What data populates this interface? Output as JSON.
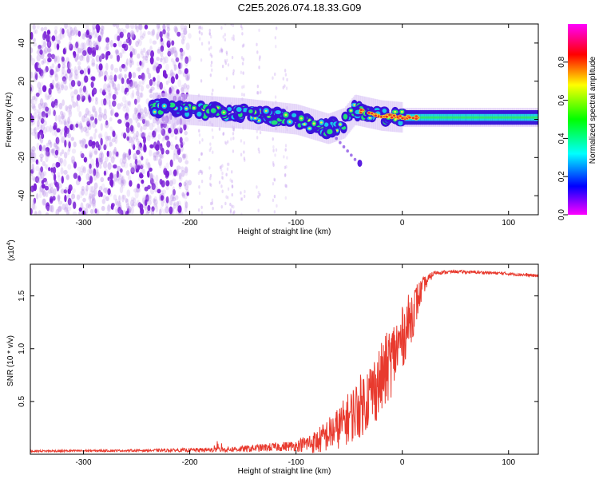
{
  "title": "C2E5.2026.074.18.33.G09",
  "colors": {
    "snr_line": "#e83a2e",
    "spectro_cloud": "#8a2be2",
    "axis": "#000000"
  },
  "chart_data": [
    {
      "type": "heatmap",
      "name": "spectrogram",
      "xlabel": "Height of straight line (km)",
      "ylabel": "Frequency (Hz)",
      "xlim": [
        -350,
        128
      ],
      "ylim": [
        -50,
        50
      ],
      "x_ticks": [
        -300,
        -200,
        -100,
        0,
        100
      ],
      "y_ticks": [
        40,
        20,
        0,
        -20,
        -40
      ],
      "colorbar": {
        "label": "Normalized spectral amplitude",
        "ticks": [
          0.0,
          0.2,
          0.4,
          0.6,
          0.8
        ],
        "range": [
          0,
          1
        ],
        "colormap": [
          "#ff00ff",
          "#0000ff",
          "#00ffff",
          "#00ff00",
          "#ffff00",
          "#ff0000",
          "#ff00ff"
        ]
      },
      "features": {
        "noise_region_x": [
          -350,
          -200
        ],
        "signal_start_x": -235,
        "signal_trace_hz": [
          [
            -235,
            6
          ],
          [
            -200,
            5
          ],
          [
            -150,
            3
          ],
          [
            -100,
            0
          ],
          [
            -70,
            -5
          ],
          [
            -55,
            -2
          ],
          [
            -45,
            5
          ],
          [
            -20,
            2
          ],
          [
            0,
            1
          ],
          [
            128,
            1
          ]
        ],
        "stray_blob": [
          -40,
          -23
        ]
      }
    },
    {
      "type": "line",
      "name": "snr",
      "xlabel": "Height of straight line (km)",
      "ylabel": "SNR (10 * v/v)",
      "y_multiplier_label": "(x10",
      "y_multiplier_exp": "4",
      "xlim": [
        -350,
        128
      ],
      "ylim": [
        0,
        1.8
      ],
      "x_ticks": [
        -300,
        -200,
        -100,
        0,
        100
      ],
      "y_ticks": [
        0.5,
        1.0,
        1.5
      ],
      "y_tick_labels": [
        "0.5",
        "1.0",
        "1.5"
      ],
      "envelope": {
        "x": [
          -350,
          -250,
          -190,
          -150,
          -100,
          -80,
          -60,
          -40,
          -20,
          -10,
          0,
          10,
          20,
          30,
          50,
          80,
          100,
          128
        ],
        "mean": [
          0.03,
          0.035,
          0.04,
          0.05,
          0.08,
          0.12,
          0.25,
          0.45,
          0.7,
          0.9,
          1.1,
          1.35,
          1.6,
          1.72,
          1.73,
          1.72,
          1.71,
          1.69
        ],
        "spread": [
          0.01,
          0.01,
          0.02,
          0.03,
          0.05,
          0.12,
          0.2,
          0.3,
          0.35,
          0.35,
          0.3,
          0.25,
          0.08,
          0.02,
          0.015,
          0.015,
          0.015,
          0.015
        ]
      }
    }
  ]
}
